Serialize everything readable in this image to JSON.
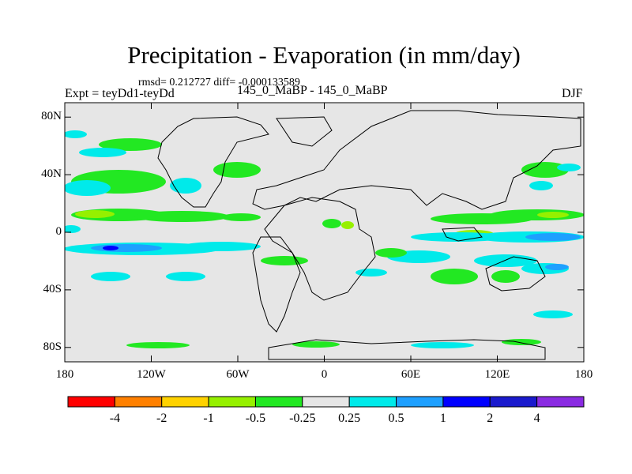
{
  "title": "Precipitation - Evaporation (in mm/day)",
  "stats": "rmsd= 0.212727 diff= -0.000133589",
  "expt": "Expt = teyDd1-teyDd",
  "cases": "145_0_MaBP - 145_0_MaBP",
  "season": "DJF",
  "map": {
    "lat_labels": [
      "80N",
      "40N",
      "0",
      "40S",
      "80S"
    ],
    "lat_values": [
      80,
      40,
      0,
      -40,
      -80
    ],
    "lon_labels": [
      "180",
      "120W",
      "60W",
      "0",
      "60E",
      "120E",
      "180"
    ],
    "lon_values": [
      -180,
      -120,
      -60,
      0,
      60,
      120,
      180
    ],
    "lat_range": [
      -90,
      90
    ],
    "lon_range": [
      -180,
      180
    ],
    "background_color": "#e6e6e6",
    "coastline_color": "#000000"
  },
  "colorbar": {
    "labels": [
      "-4",
      "-2",
      "-1",
      "-0.5",
      "-0.25",
      "0.25",
      "0.5",
      "1",
      "2",
      "4"
    ],
    "colors": [
      "#ff0000",
      "#ff8000",
      "#ffd200",
      "#96f000",
      "#22e822",
      "#e6e6e6",
      "#00eaea",
      "#1ea0ff",
      "#0000ff",
      "#1a1acd",
      "#8a2be2"
    ]
  }
}
